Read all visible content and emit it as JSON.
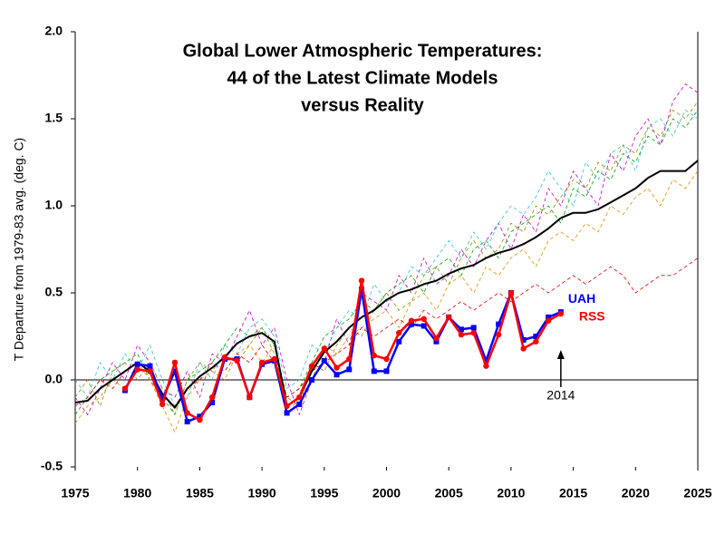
{
  "chart_data": {
    "type": "line",
    "title": [
      "Global Lower Atmospheric Temperatures:",
      "44 of the Latest Climate Models",
      "versus Reality"
    ],
    "y_label": "T Departure from 1979-83 avg. (deg. C)",
    "x": [
      1975,
      1976,
      1977,
      1978,
      1979,
      1980,
      1981,
      1982,
      1983,
      1984,
      1985,
      1986,
      1987,
      1988,
      1989,
      1990,
      1991,
      1992,
      1993,
      1994,
      1995,
      1996,
      1997,
      1998,
      1999,
      2000,
      2001,
      2002,
      2003,
      2004,
      2005,
      2006,
      2007,
      2008,
      2009,
      2010,
      2011,
      2012,
      2013,
      2014,
      2015,
      2016,
      2017,
      2018,
      2019,
      2020,
      2021,
      2022,
      2023,
      2024,
      2025
    ],
    "xlim": [
      1975,
      2025
    ],
    "xticks": [
      1975,
      1980,
      1985,
      1990,
      1995,
      2000,
      2005,
      2010,
      2015,
      2020,
      2025
    ],
    "ylim": [
      -0.5,
      2.0
    ],
    "yticks": [
      -0.5,
      {
        "value": 0,
        "label": "0.0"
      },
      0.5,
      {
        "value": 1,
        "label": "1.0"
      },
      1.5,
      {
        "value": 2,
        "label": "2.0"
      }
    ],
    "series": [
      {
        "color": "#00a000",
        "dashed": true,
        "width": 0.8,
        "values": [
          -0.2,
          -0.1,
          0.0,
          0.05,
          0.1,
          0.15,
          0.0,
          -0.1,
          -0.2,
          0.0,
          0.05,
          0.1,
          0.2,
          0.3,
          0.25,
          0.3,
          0.2,
          -0.1,
          -0.05,
          0.1,
          0.25,
          0.3,
          0.35,
          0.45,
          0.4,
          0.5,
          0.55,
          0.6,
          0.5,
          0.65,
          0.7,
          0.6,
          0.75,
          0.8,
          0.7,
          0.85,
          0.9,
          0.95,
          1.0,
          0.9,
          1.1,
          1.05,
          1.2,
          1.15,
          1.3,
          1.25,
          1.4,
          1.35,
          1.5,
          1.45,
          1.55
        ]
      },
      {
        "color": "#c000c0",
        "dashed": true,
        "width": 0.8,
        "values": [
          -0.1,
          -0.2,
          -0.05,
          0.1,
          0.0,
          0.2,
          0.1,
          -0.05,
          -0.1,
          0.05,
          -0.1,
          0.15,
          0.1,
          0.25,
          0.4,
          0.2,
          0.3,
          0.0,
          -0.2,
          0.0,
          0.1,
          0.35,
          0.2,
          0.5,
          0.45,
          0.4,
          0.6,
          0.5,
          0.7,
          0.55,
          0.6,
          0.75,
          0.65,
          0.8,
          0.9,
          0.75,
          0.95,
          0.85,
          1.1,
          1.0,
          1.2,
          1.1,
          1.0,
          1.3,
          1.2,
          1.4,
          1.5,
          1.35,
          1.6,
          1.7,
          1.65
        ]
      },
      {
        "color": "#30c0e0",
        "dashed": true,
        "width": 0.8,
        "values": [
          0.0,
          -0.1,
          0.1,
          0.0,
          0.15,
          0.05,
          0.2,
          0.0,
          -0.15,
          -0.1,
          0.1,
          0.0,
          0.2,
          0.15,
          0.3,
          0.35,
          0.25,
          -0.05,
          0.0,
          0.2,
          0.15,
          0.3,
          0.4,
          0.35,
          0.55,
          0.45,
          0.5,
          0.65,
          0.6,
          0.7,
          0.8,
          0.7,
          0.85,
          0.75,
          0.9,
          1.0,
          0.95,
          1.05,
          1.2,
          1.1,
          1.0,
          1.25,
          1.15,
          1.3,
          1.35,
          1.2,
          1.45,
          1.5,
          1.4,
          1.55,
          1.5
        ]
      },
      {
        "color": "#e09000",
        "dashed": true,
        "width": 0.8,
        "values": [
          -0.25,
          -0.15,
          -0.1,
          0.0,
          -0.05,
          0.1,
          0.0,
          -0.15,
          -0.3,
          -0.1,
          0.0,
          0.05,
          0.0,
          0.15,
          0.2,
          0.1,
          0.2,
          -0.2,
          -0.1,
          0.0,
          0.2,
          0.15,
          0.25,
          0.3,
          0.35,
          0.4,
          0.3,
          0.45,
          0.5,
          0.4,
          0.55,
          0.6,
          0.5,
          0.65,
          0.6,
          0.7,
          0.75,
          0.65,
          0.8,
          0.85,
          0.8,
          0.9,
          0.85,
          1.0,
          0.95,
          1.05,
          1.1,
          1.0,
          1.15,
          1.1,
          1.2
        ]
      },
      {
        "color": "#909000",
        "dashed": true,
        "width": 0.8,
        "values": [
          -0.1,
          0.0,
          -0.15,
          0.05,
          0.1,
          0.0,
          0.1,
          -0.05,
          -0.2,
          0.0,
          0.1,
          0.05,
          0.15,
          0.1,
          0.2,
          0.3,
          0.15,
          -0.1,
          -0.15,
          0.1,
          0.05,
          0.2,
          0.3,
          0.25,
          0.4,
          0.5,
          0.4,
          0.45,
          0.6,
          0.65,
          0.55,
          0.7,
          0.8,
          0.7,
          0.75,
          0.9,
          0.85,
          1.0,
          0.95,
          1.05,
          1.15,
          1.1,
          1.25,
          1.2,
          1.35,
          1.3,
          1.45,
          1.4,
          1.55,
          1.5,
          1.6
        ]
      },
      {
        "color": "#e00000",
        "dashed": true,
        "width": 0.8,
        "values": [
          -0.15,
          -0.1,
          0.0,
          -0.05,
          0.05,
          0.1,
          0.05,
          -0.1,
          -0.15,
          -0.05,
          0.0,
          0.1,
          0.05,
          0.15,
          0.1,
          0.2,
          0.1,
          -0.1,
          -0.05,
          0.05,
          0.1,
          0.15,
          0.2,
          0.3,
          0.25,
          0.3,
          0.35,
          0.3,
          0.4,
          0.35,
          0.4,
          0.45,
          0.4,
          0.45,
          0.5,
          0.45,
          0.5,
          0.55,
          0.5,
          0.55,
          0.6,
          0.55,
          0.6,
          0.65,
          0.6,
          0.5,
          0.55,
          0.6,
          0.6,
          0.65,
          0.7
        ]
      },
      {
        "color": "#000000",
        "dashed": false,
        "width": 2,
        "values": [
          -0.13,
          -0.12,
          -0.05,
          0.0,
          0.05,
          0.1,
          0.05,
          -0.08,
          -0.16,
          -0.05,
          0.02,
          0.07,
          0.13,
          0.21,
          0.25,
          0.27,
          0.22,
          -0.15,
          -0.1,
          0.05,
          0.16,
          0.22,
          0.3,
          0.36,
          0.4,
          0.46,
          0.5,
          0.52,
          0.55,
          0.57,
          0.61,
          0.64,
          0.66,
          0.7,
          0.73,
          0.75,
          0.78,
          0.82,
          0.87,
          0.93,
          0.96,
          0.96,
          0.98,
          1.02,
          1.06,
          1.1,
          1.16,
          1.2,
          1.2,
          1.2,
          1.26
        ]
      },
      {
        "name": "UAH",
        "color": "#0000ff",
        "dashed": false,
        "width": 2.5,
        "marker": "square",
        "values": [
          null,
          null,
          null,
          null,
          -0.06,
          0.09,
          0.08,
          -0.11,
          0.05,
          -0.24,
          -0.21,
          -0.13,
          0.12,
          0.12,
          -0.1,
          0.09,
          0.11,
          -0.19,
          -0.14,
          0.0,
          0.11,
          0.03,
          0.06,
          0.52,
          0.05,
          0.05,
          0.22,
          0.32,
          0.31,
          0.22,
          0.36,
          0.29,
          0.3,
          0.11,
          0.32,
          0.5,
          0.23,
          0.25,
          0.36,
          0.39,
          null,
          null,
          null,
          null,
          null,
          null,
          null,
          null,
          null,
          null,
          null
        ]
      },
      {
        "name": "RSS",
        "color": "#ff0000",
        "dashed": false,
        "width": 2.5,
        "marker": "circle",
        "values": [
          null,
          null,
          null,
          null,
          -0.05,
          0.06,
          0.05,
          -0.14,
          0.1,
          -0.19,
          -0.23,
          -0.1,
          0.13,
          0.11,
          -0.1,
          0.1,
          0.12,
          -0.15,
          -0.1,
          0.08,
          0.18,
          0.07,
          0.12,
          0.57,
          0.14,
          0.12,
          0.27,
          0.34,
          0.35,
          0.24,
          0.36,
          0.26,
          0.27,
          0.08,
          0.26,
          0.5,
          0.18,
          0.22,
          0.34,
          0.38,
          null,
          null,
          null,
          null,
          null,
          null,
          null,
          null,
          null,
          null,
          null
        ]
      }
    ],
    "annotations": [
      {
        "x": 2014
      }
    ]
  }
}
